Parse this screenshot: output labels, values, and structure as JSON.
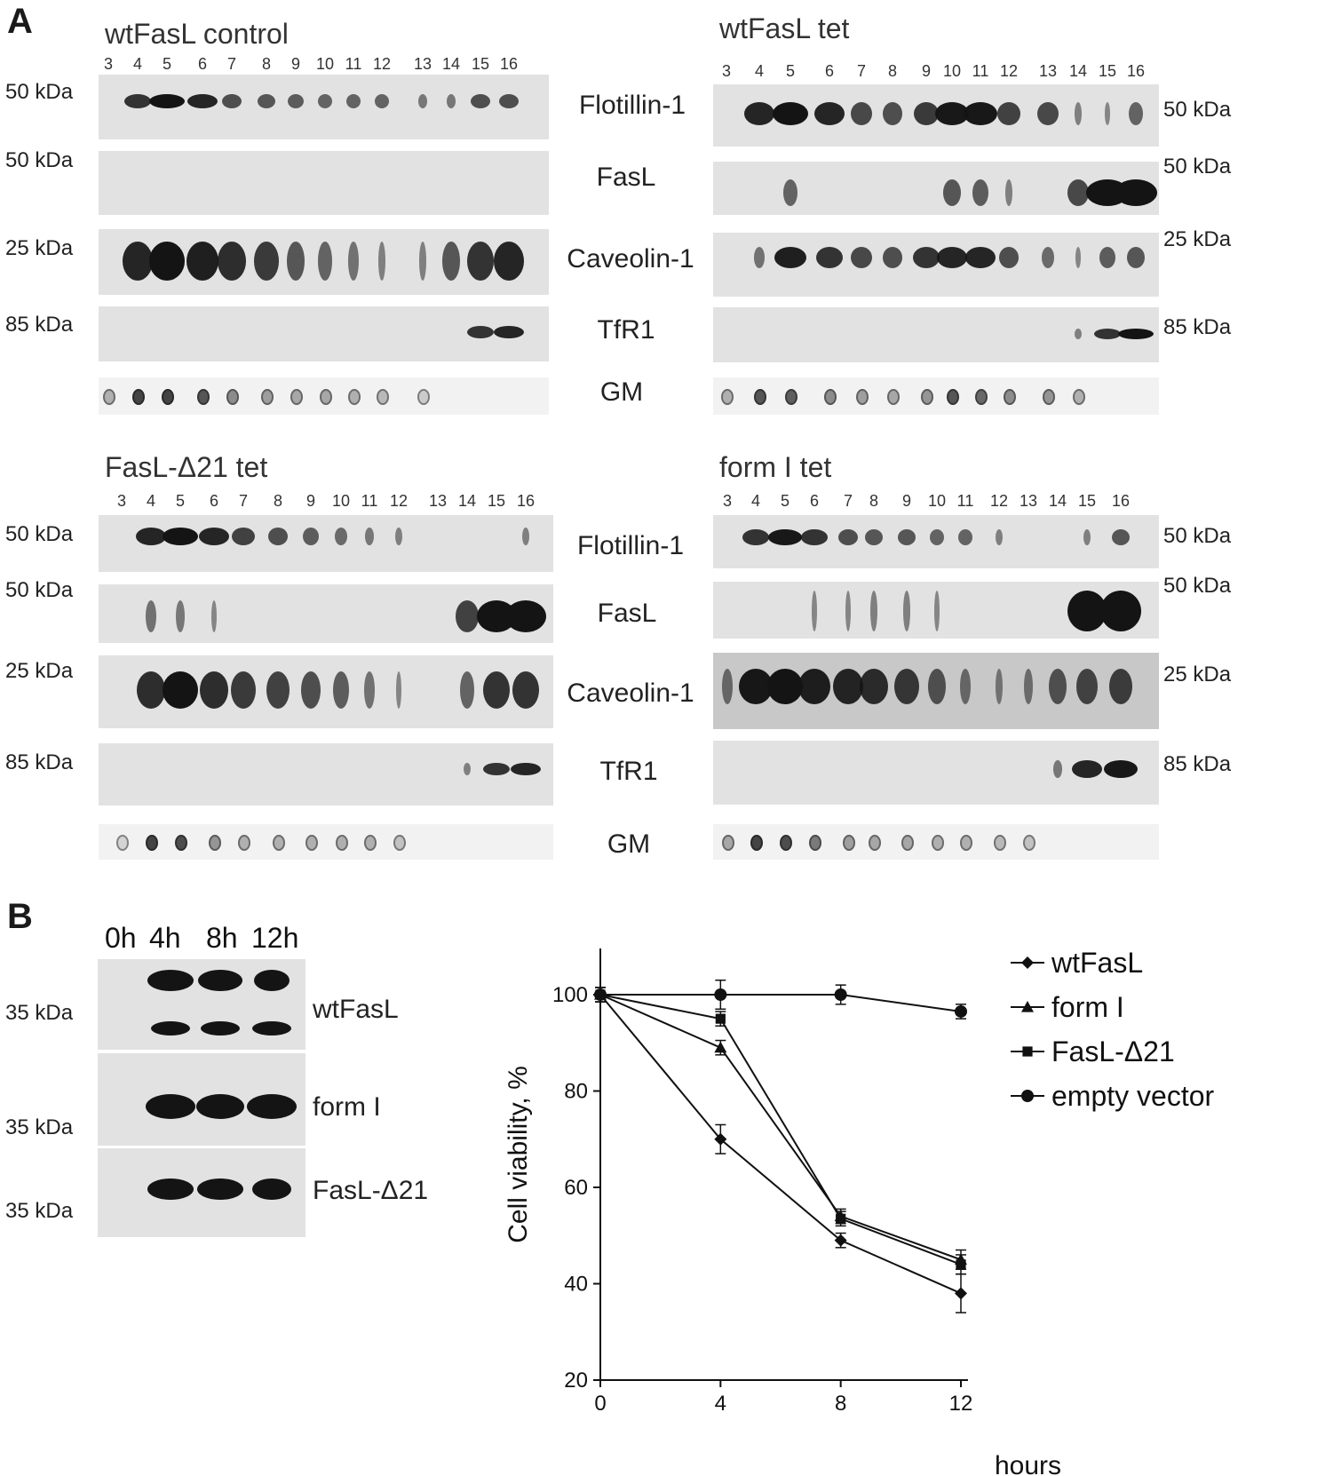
{
  "panel_a": {
    "label": "A",
    "lanes": [
      "3",
      "4",
      "5",
      "6",
      "7",
      "8",
      "9",
      "10",
      "11",
      "12",
      "13",
      "14",
      "15",
      "16"
    ],
    "proteins": [
      "Flotillin-1",
      "FasL",
      "Caveolin-1",
      "TfR1",
      "GM"
    ],
    "markers": [
      "50 kDa",
      "50 kDa",
      "25 kDa",
      "85 kDa"
    ],
    "blots": [
      {
        "title": "wtFasL control"
      },
      {
        "title": "wtFasL tet"
      },
      {
        "title": "FasL-Δ21 tet"
      },
      {
        "title": "form I tet"
      }
    ]
  },
  "panel_b": {
    "label": "B",
    "times": [
      "0h",
      "4h",
      "8h",
      "12h"
    ],
    "marker": "35 kDa",
    "blot_labels": [
      "wtFasL",
      "form I",
      "FasL-Δ21"
    ]
  },
  "chart_data": {
    "type": "line",
    "x": [
      0,
      4,
      8,
      12
    ],
    "xlabel": "hours",
    "ylabel": "Cell viability, %",
    "xlim": [
      0,
      12
    ],
    "ylim": [
      20,
      100
    ],
    "xticks": [
      0,
      4,
      8,
      12
    ],
    "yticks": [
      20,
      40,
      60,
      80,
      100
    ],
    "legend_position": "top-right",
    "series": [
      {
        "name": "wtFasL",
        "marker": "diamond",
        "values": [
          100,
          70,
          49,
          38
        ],
        "errors": [
          1.5,
          3,
          1.5,
          4
        ]
      },
      {
        "name": "form I",
        "marker": "triangle",
        "values": [
          100,
          89,
          54,
          45
        ],
        "errors": [
          1.5,
          1.5,
          1.5,
          2
        ]
      },
      {
        "name": "FasL-Δ21",
        "marker": "square",
        "values": [
          100,
          95,
          53.5,
          44
        ],
        "errors": [
          1.5,
          1.5,
          1.5,
          2
        ]
      },
      {
        "name": "empty vector",
        "marker": "circle",
        "values": [
          100,
          100,
          100,
          96.5
        ],
        "errors": [
          1.5,
          3,
          2,
          1.5
        ]
      }
    ]
  }
}
